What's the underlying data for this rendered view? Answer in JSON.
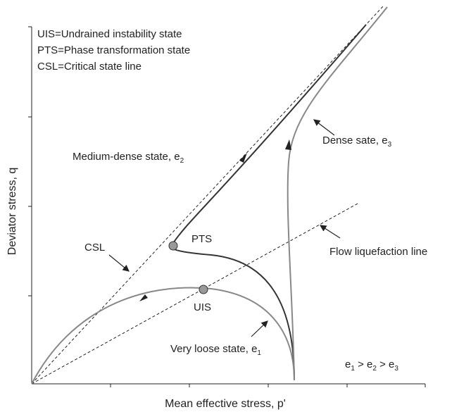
{
  "axes": {
    "y_label": "Deviator stress, q",
    "x_label": "Mean effective stress, p'"
  },
  "legend": [
    "UIS=Undrained instability state",
    "PTS=Phase transformation state",
    "CSL=Critical state line"
  ],
  "labels": {
    "medium_dense": {
      "text": "Medium-dense state, e",
      "sub": "2"
    },
    "dense": {
      "text": "Dense sate, e",
      "sub": "3"
    },
    "very_loose": {
      "text": "Very loose state, e",
      "sub": "1"
    },
    "csl": "CSL",
    "pts": "PTS",
    "uis": "UIS",
    "flow": "Flow liquefaction line"
  },
  "relation": [
    {
      "base": "e",
      "sub": "1"
    },
    {
      "base": " > e",
      "sub": "2"
    },
    {
      "base": " > e",
      "sub": "3"
    }
  ]
}
